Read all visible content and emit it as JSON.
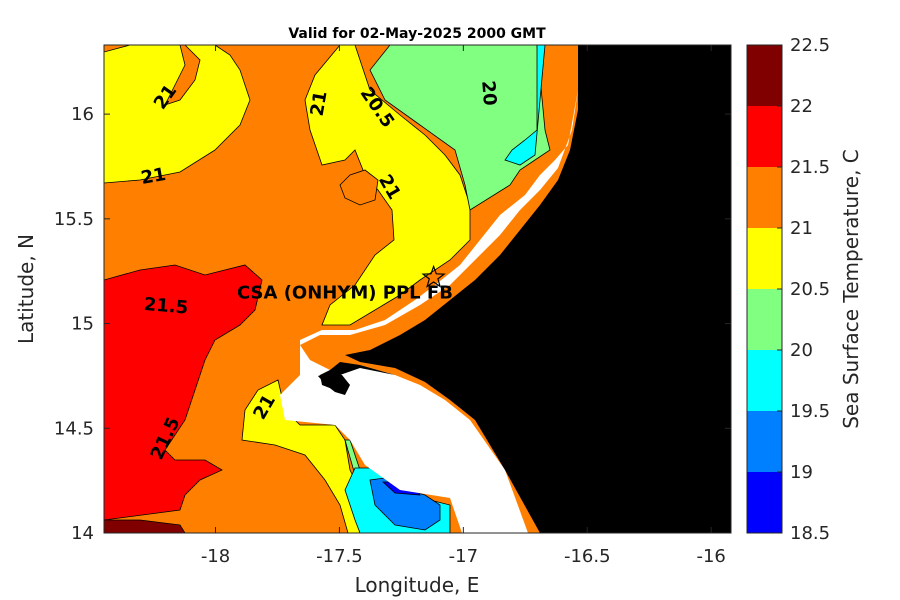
{
  "title": "Valid for 02-May-2025 2000 GMT",
  "axes": {
    "xlabel": "Longitude, E",
    "ylabel": "Latitude, N",
    "xticks": [
      "-18",
      "-17.5",
      "-17",
      "-16.5",
      "-16"
    ],
    "yticks": [
      "14",
      "14.5",
      "15",
      "15.5",
      "16"
    ],
    "xlim": [
      -18.45,
      -15.92
    ],
    "ylim": [
      14.0,
      16.33
    ]
  },
  "colorbar": {
    "label": "Sea Surface Temperature, C",
    "ticks": [
      "18.5",
      "19",
      "19.5",
      "20",
      "20.5",
      "21",
      "21.5",
      "22",
      "22.5"
    ],
    "range": [
      18.5,
      22.5
    ],
    "colors": [
      "#0000ff",
      "#0080ff",
      "#00ffff",
      "#80ff80",
      "#ffff00",
      "#ff8000",
      "#ff0000",
      "#800000"
    ]
  },
  "land_color": "#000000",
  "contour_labels": [
    {
      "text": "21",
      "lon": -18.2,
      "lat": 16.08,
      "angle": -55
    },
    {
      "text": "21",
      "lon": -17.58,
      "lat": 16.05,
      "angle": -80
    },
    {
      "text": "20.5",
      "lon": -17.35,
      "lat": 16.03,
      "angle": 55
    },
    {
      "text": "20",
      "lon": -16.9,
      "lat": 16.1,
      "angle": 85
    },
    {
      "text": "21",
      "lon": -18.25,
      "lat": 15.7,
      "angle": -10
    },
    {
      "text": "21",
      "lon": -17.3,
      "lat": 15.65,
      "angle": 60
    },
    {
      "text": "21.5",
      "lon": -18.2,
      "lat": 15.08,
      "angle": 5
    },
    {
      "text": "21",
      "lon": -17.8,
      "lat": 14.6,
      "angle": -60
    },
    {
      "text": "21.5",
      "lon": -18.2,
      "lat": 14.45,
      "angle": -65
    }
  ],
  "site": {
    "label": "CSA (ONHYM) PPL FB",
    "marker": "star-icon",
    "lon": -17.12,
    "lat": 15.22
  }
}
